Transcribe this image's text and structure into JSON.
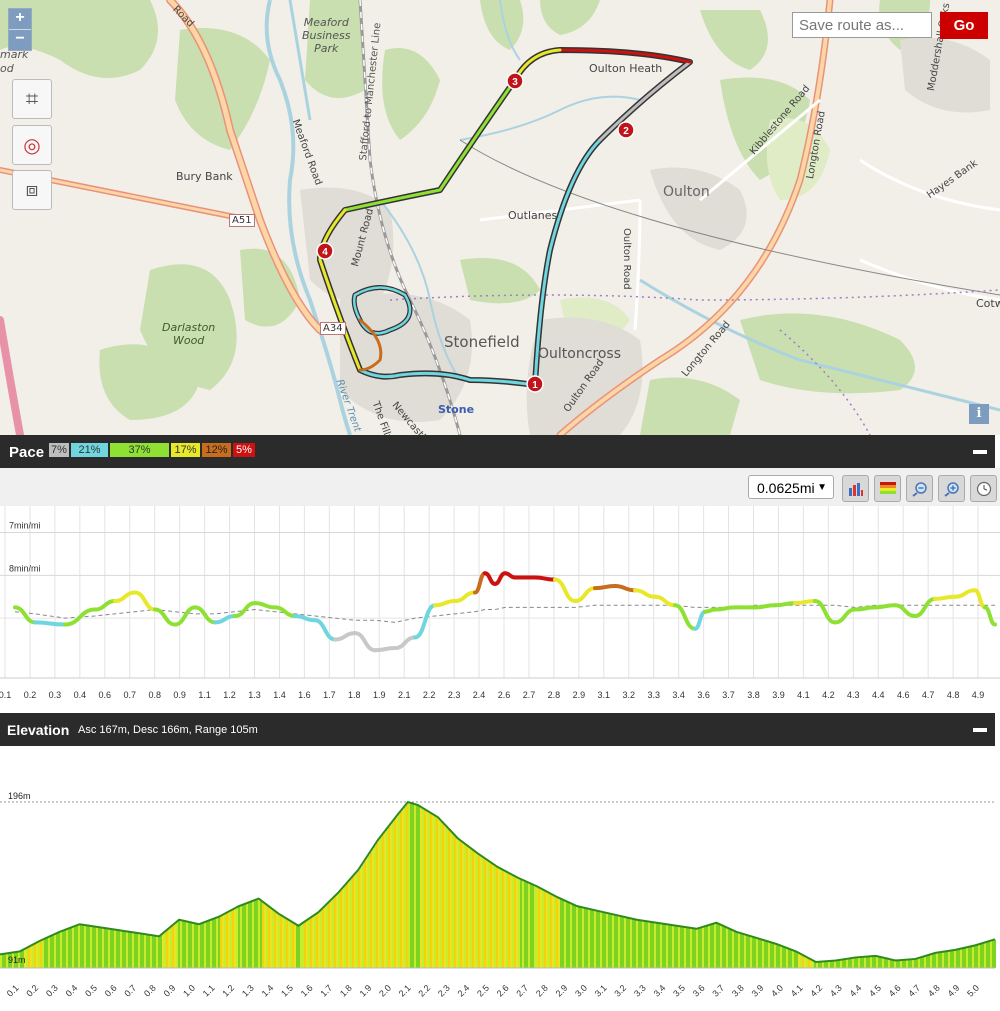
{
  "map": {
    "zoom_in": "+",
    "zoom_out": "−",
    "tools": [
      {
        "icon": "grid-icon",
        "glyph": "⌗"
      },
      {
        "icon": "lifebuoy-icon",
        "glyph": "◎"
      },
      {
        "icon": "fullscreen-icon",
        "glyph": "⧈"
      }
    ],
    "save_placeholder": "Save route as...",
    "go_label": "Go",
    "info_label": "i",
    "labels": {
      "oulton_heath": "Oulton Heath",
      "oulton": "Oulton",
      "outlanes": "Outlanes",
      "stonefield": "Stonefield",
      "oultoncross": "Oultoncross",
      "stone": "Stone",
      "bury_bank": "Bury Bank",
      "darlaston_wood": "Darlaston\nWood",
      "meaford_park": "Meaford\nBusiness\nPark",
      "a51": "A51",
      "a34": "A34",
      "cotw": "Cotw",
      "moddershall_oaks": "Moddershall Oaks",
      "hayes_bank": "Hayes Bank",
      "longton_road": "Longton Road",
      "kibblestone_road": "Kibblestone Road",
      "oulton_road": "Oulton Road",
      "meaford_road": "Meaford Road",
      "mount_road": "Mount Road",
      "stafford_manchester": "Stafford to Manchester Line",
      "newcastle": "Newcastle",
      "the_fillybrooks": "The Filly",
      "river_trent": "River Trent",
      "road_top": "Road",
      "mark": "mark",
      "od": "od"
    },
    "markers": [
      "1",
      "2",
      "3",
      "4"
    ],
    "colors": {
      "route_dark": "#333333",
      "marker": "#c0141a"
    }
  },
  "pace": {
    "title": "Pace",
    "distribution": [
      {
        "label": "7%",
        "color": "#bdbdbd"
      },
      {
        "label": "21%",
        "color": "#6fd6e0"
      },
      {
        "label": "37%",
        "color": "#8ee033"
      },
      {
        "label": "17%",
        "color": "#e8e82a"
      },
      {
        "label": "12%",
        "color": "#c86c1e"
      },
      {
        "label": "5%",
        "color": "#cc1111"
      }
    ],
    "interval": "0.0625mi",
    "toolbar_icons": [
      "bar-chart-icon",
      "color-bands-icon",
      "zoom-out-icon",
      "zoom-in-icon",
      "clock-icon"
    ]
  },
  "elevation": {
    "title": "Elevation",
    "stats": "Asc 167m, Desc 166m, Range 105m"
  },
  "chart_data": [
    {
      "type": "line",
      "title": "Pace",
      "y_ticks": [
        "7min/mi",
        "8min/mi"
      ],
      "x_ticks": [
        "0.1",
        "0.2",
        "0.3",
        "0.4",
        "0.6",
        "0.7",
        "0.8",
        "0.9",
        "1.1",
        "1.2",
        "1.3",
        "1.4",
        "1.6",
        "1.7",
        "1.8",
        "1.9",
        "2.1",
        "2.2",
        "2.3",
        "2.4",
        "2.6",
        "2.7",
        "2.8",
        "2.9",
        "3.1",
        "3.2",
        "3.3",
        "3.4",
        "3.6",
        "3.7",
        "3.8",
        "3.9",
        "4.1",
        "4.2",
        "4.3",
        "4.4",
        "4.6",
        "4.7",
        "4.8",
        "4.9"
      ],
      "x": [
        0.05,
        0.15,
        0.3,
        0.45,
        0.55,
        0.65,
        0.75,
        0.85,
        0.95,
        1.05,
        1.15,
        1.25,
        1.35,
        1.45,
        1.55,
        1.65,
        1.75,
        1.85,
        1.95,
        2.05,
        2.15,
        2.25,
        2.35,
        2.4,
        2.45,
        2.5,
        2.55,
        2.65,
        2.75,
        2.85,
        2.95,
        3.05,
        3.15,
        3.25,
        3.35,
        3.45,
        3.5,
        3.55,
        3.65,
        3.75,
        3.85,
        3.95,
        4.05,
        4.15,
        4.25,
        4.35,
        4.45,
        4.55,
        4.65,
        4.75,
        4.85,
        4.9,
        4.95
      ],
      "y": [
        8.75,
        9.1,
        9.15,
        8.8,
        8.6,
        8.4,
        8.8,
        9.15,
        8.75,
        9.1,
        8.95,
        8.65,
        8.75,
        8.95,
        9.05,
        9.5,
        9.35,
        9.75,
        9.7,
        9.45,
        8.7,
        8.6,
        8.4,
        7.95,
        8.2,
        7.95,
        8.05,
        8.05,
        8.1,
        8.6,
        8.3,
        8.25,
        8.35,
        8.5,
        8.7,
        9.25,
        8.85,
        8.8,
        8.75,
        8.75,
        8.7,
        8.65,
        8.6,
        9.1,
        8.8,
        8.75,
        8.7,
        8.95,
        8.55,
        8.5,
        8.35,
        8.75,
        9.15
      ],
      "avg_y": [
        8.85,
        8.9,
        9.0,
        8.95,
        8.9,
        8.85,
        8.8,
        8.85,
        8.9,
        8.9,
        8.85,
        8.8,
        8.85,
        8.9,
        8.95,
        9.0,
        9.05,
        9.05,
        9.1,
        9.0,
        8.95,
        8.9,
        8.85,
        8.8,
        8.8,
        8.75,
        8.75,
        8.75,
        8.75,
        8.75,
        8.7,
        8.7,
        8.7,
        8.7,
        8.7,
        8.75,
        8.75,
        8.75,
        8.75,
        8.7,
        8.7,
        8.7,
        8.7,
        8.7,
        8.75,
        8.7,
        8.7,
        8.7,
        8.7,
        8.7,
        8.7,
        8.7,
        8.7
      ],
      "xlim": [
        0,
        4.95
      ],
      "ylim": [
        6.8,
        10.4
      ],
      "grid": true
    },
    {
      "type": "area",
      "title": "Elevation",
      "y_ticks": [
        "196m",
        "91m"
      ],
      "x_ticks": [
        "0.1",
        "0.2",
        "0.3",
        "0.4",
        "0.5",
        "0.6",
        "0.7",
        "0.8",
        "0.9",
        "1.0",
        "1.1",
        "1.2",
        "1.3",
        "1.4",
        "1.5",
        "1.6",
        "1.7",
        "1.8",
        "1.9",
        "2.0",
        "2.1",
        "2.2",
        "2.3",
        "2.4",
        "2.5",
        "2.6",
        "2.7",
        "2.8",
        "2.9",
        "3.0",
        "3.1",
        "3.2",
        "3.3",
        "3.4",
        "3.5",
        "3.6",
        "3.7",
        "3.8",
        "3.9",
        "4.0",
        "4.1",
        "4.2",
        "4.3",
        "4.4",
        "4.5",
        "4.6",
        "4.7",
        "4.8",
        "4.9",
        "5.0"
      ],
      "x": [
        0.0,
        0.1,
        0.2,
        0.3,
        0.4,
        0.5,
        0.6,
        0.7,
        0.8,
        0.9,
        1.0,
        1.1,
        1.2,
        1.3,
        1.4,
        1.5,
        1.6,
        1.7,
        1.8,
        1.9,
        2.0,
        2.05,
        2.1,
        2.2,
        2.3,
        2.4,
        2.5,
        2.6,
        2.7,
        2.8,
        2.9,
        3.0,
        3.1,
        3.2,
        3.3,
        3.4,
        3.5,
        3.6,
        3.7,
        3.8,
        3.9,
        4.0,
        4.1,
        4.2,
        4.3,
        4.4,
        4.5,
        4.6,
        4.7,
        4.8,
        4.9,
        5.0
      ],
      "y": [
        95,
        97,
        104,
        110,
        115,
        113,
        111,
        109,
        107,
        118,
        115,
        120,
        127,
        132,
        122,
        114,
        123,
        136,
        151,
        171,
        188,
        196,
        194,
        186,
        172,
        162,
        153,
        146,
        140,
        133,
        127,
        124,
        121,
        118,
        116,
        114,
        112,
        116,
        110,
        106,
        102,
        97,
        90,
        91,
        93,
        94,
        91,
        92,
        96,
        98,
        101,
        105
      ],
      "ylim": [
        86,
        200
      ],
      "ymax_line": 196
    }
  ]
}
